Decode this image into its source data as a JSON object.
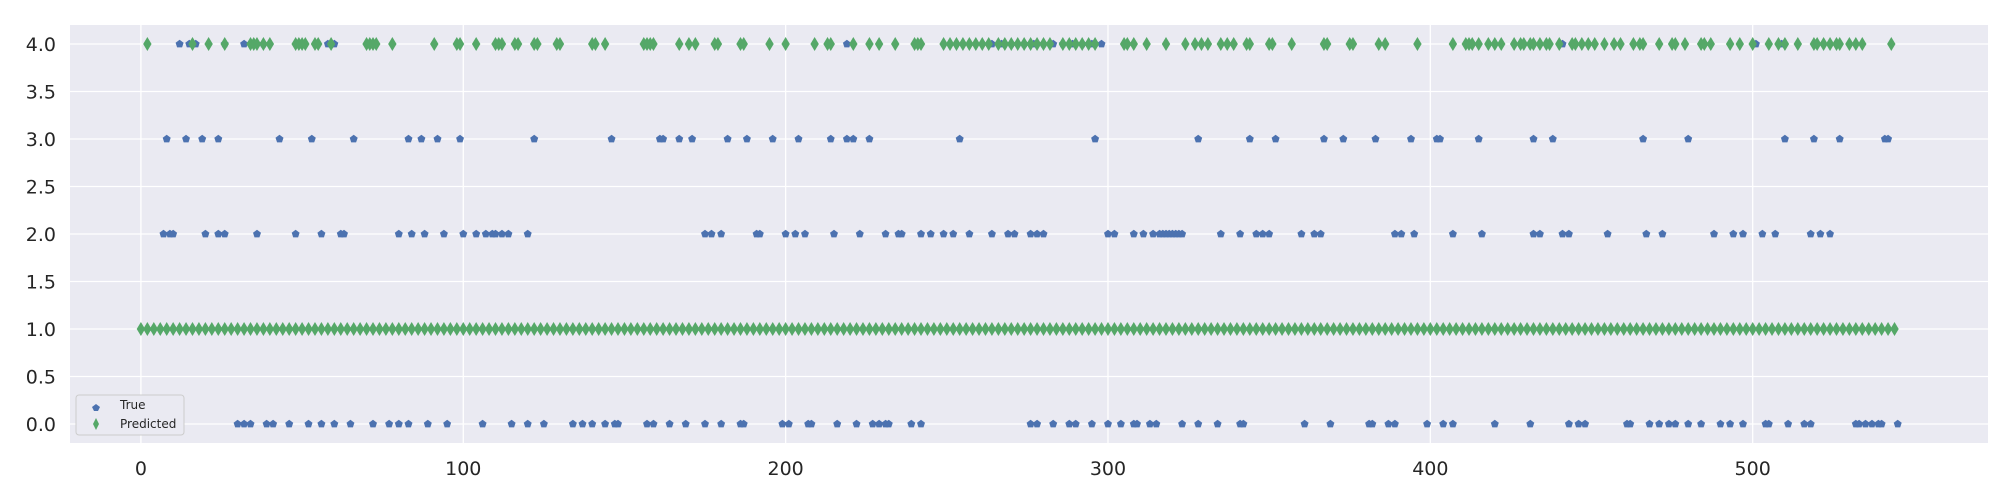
{
  "chart_data": {
    "type": "scatter",
    "title": "",
    "xlabel": "",
    "ylabel": "",
    "xlim": [
      -22,
      573
    ],
    "ylim": [
      -0.2,
      4.2
    ],
    "x_ticks": [
      0,
      100,
      200,
      300,
      400,
      500
    ],
    "x_tick_labels": [
      "0",
      "100",
      "200",
      "300",
      "400",
      "500"
    ],
    "y_ticks": [
      0.0,
      0.5,
      1.0,
      1.5,
      2.0,
      2.5,
      3.0,
      3.5,
      4.0
    ],
    "y_tick_labels": [
      "0.0",
      "0.5",
      "1.0",
      "1.5",
      "2.0",
      "2.5",
      "3.0",
      "3.5",
      "4.0"
    ],
    "grid": true,
    "background": "#eaeaf2",
    "legend": {
      "position": "bottom-left",
      "entries": [
        "True",
        "Predicted"
      ]
    },
    "series": [
      {
        "name": "True",
        "marker": "pentagon",
        "color": "#4c72b0",
        "points": [
          {
            "y": 4.0,
            "x": [
              12,
              15,
              17,
              26,
              32,
              35,
              38,
              58,
              59,
              60,
              219,
              264,
              267,
              270,
              274,
              277,
              280,
              283,
              286,
              289,
              292,
              295,
              298,
              441,
              501,
              509
            ]
          },
          {
            "y": 3.0,
            "x": [
              8,
              14,
              19,
              24,
              43,
              53,
              66,
              83,
              87,
              92,
              99,
              122,
              146,
              161,
              162,
              167,
              171,
              182,
              188,
              196,
              204,
              214,
              219,
              221,
              226,
              254,
              296,
              328,
              344,
              352,
              367,
              373,
              383,
              394,
              402,
              403,
              415,
              432,
              438,
              466,
              480,
              510,
              519,
              527,
              541,
              542
            ]
          },
          {
            "y": 2.0,
            "x": [
              7,
              9,
              10,
              20,
              24,
              26,
              36,
              48,
              56,
              62,
              63,
              80,
              84,
              88,
              94,
              100,
              104,
              107,
              109,
              110,
              112,
              114,
              120,
              175,
              177,
              180,
              191,
              192,
              200,
              203,
              206,
              215,
              223,
              231,
              235,
              236,
              242,
              245,
              249,
              252,
              257,
              264,
              269,
              271,
              276,
              278,
              280,
              300,
              302,
              308,
              311,
              314,
              316,
              317,
              318,
              319,
              320,
              321,
              322,
              323,
              335,
              341,
              346,
              348,
              350,
              360,
              364,
              366,
              389,
              391,
              395,
              407,
              416,
              432,
              434,
              441,
              443,
              455,
              467,
              472,
              488,
              494,
              497,
              503,
              507,
              518,
              521,
              524
            ]
          },
          {
            "y": 0.0,
            "x": [
              11,
              30,
              32,
              34,
              39,
              41,
              46,
              52,
              56,
              60,
              65,
              72,
              77,
              80,
              83,
              89,
              95,
              106,
              115,
              120,
              125,
              134,
              137,
              140,
              144,
              147,
              148,
              157,
              159,
              164,
              169,
              175,
              180,
              186,
              187,
              199,
              201,
              207,
              208,
              216,
              222,
              227,
              229,
              231,
              232,
              239,
              242,
              276,
              278,
              283,
              288,
              290,
              295,
              300,
              304,
              308,
              309,
              313,
              315,
              323,
              328,
              334,
              341,
              342,
              361,
              369,
              381,
              382,
              387,
              389,
              399,
              404,
              407,
              420,
              431,
              443,
              446,
              448,
              461,
              462,
              468,
              471,
              474,
              476,
              480,
              484,
              490,
              493,
              497,
              504,
              505,
              511,
              516,
              518,
              532,
              533,
              535,
              537,
              539,
              540,
              545
            ]
          }
        ]
      },
      {
        "name": "Predicted",
        "marker": "thin_diamond",
        "color": "#55a868",
        "points": [
          {
            "y": 4.0,
            "x": [
              2,
              16,
              21,
              26,
              34,
              35,
              36,
              38,
              40,
              48,
              49,
              50,
              51,
              54,
              55,
              59,
              70,
              71,
              72,
              73,
              78,
              91,
              98,
              99,
              104,
              110,
              111,
              112,
              116,
              117,
              122,
              123,
              129,
              130,
              140,
              141,
              144,
              156,
              157,
              158,
              159,
              167,
              170,
              172,
              178,
              179,
              186,
              187,
              195,
              200,
              209,
              213,
              214,
              221,
              226,
              229,
              234,
              240,
              241,
              242,
              249,
              251,
              253,
              255,
              257,
              259,
              261,
              263,
              266,
              268,
              270,
              272,
              274,
              276,
              278,
              280,
              282,
              286,
              288,
              290,
              292,
              294,
              296,
              305,
              306,
              308,
              312,
              318,
              324,
              327,
              329,
              331,
              335,
              337,
              339,
              343,
              344,
              350,
              351,
              357,
              367,
              368,
              375,
              376,
              384,
              386,
              396,
              407,
              411,
              412,
              413,
              415,
              418,
              420,
              422,
              426,
              428,
              429,
              431,
              432,
              434,
              436,
              437,
              440,
              444,
              445,
              447,
              449,
              451,
              454,
              457,
              459,
              463,
              465,
              466,
              471,
              475,
              476,
              479,
              484,
              485,
              487,
              493,
              496,
              500,
              505,
              508,
              510,
              514,
              519,
              520,
              522,
              524,
              526,
              527,
              530,
              532,
              534,
              543
            ]
          },
          {
            "y": 1.0,
            "x": [
              0,
              2,
              4,
              6,
              8,
              10,
              12,
              14,
              16,
              18,
              20,
              22,
              24,
              26,
              28,
              30,
              32,
              34,
              36,
              38,
              40,
              42,
              44,
              46,
              48,
              50,
              52,
              54,
              56,
              58,
              60,
              62,
              64,
              66,
              68,
              70,
              72,
              74,
              76,
              78,
              80,
              82,
              84,
              86,
              88,
              90,
              92,
              94,
              96,
              98,
              100,
              102,
              104,
              106,
              108,
              110,
              112,
              114,
              116,
              118,
              120,
              122,
              124,
              126,
              128,
              130,
              132,
              134,
              136,
              138,
              140,
              142,
              144,
              146,
              148,
              150,
              152,
              154,
              156,
              158,
              160,
              162,
              164,
              166,
              168,
              170,
              172,
              174,
              176,
              178,
              180,
              182,
              184,
              186,
              188,
              190,
              192,
              194,
              196,
              198,
              200,
              202,
              204,
              206,
              208,
              210,
              212,
              214,
              216,
              218,
              220,
              222,
              224,
              226,
              228,
              230,
              232,
              234,
              236,
              238,
              240,
              242,
              244,
              246,
              248,
              250,
              252,
              254,
              256,
              258,
              260,
              262,
              264,
              266,
              268,
              270,
              272,
              274,
              276,
              278,
              280,
              282,
              284,
              286,
              288,
              290,
              292,
              294,
              296,
              298,
              300,
              302,
              304,
              306,
              308,
              310,
              312,
              314,
              316,
              318,
              320,
              322,
              324,
              326,
              328,
              330,
              332,
              334,
              336,
              338,
              340,
              342,
              344,
              346,
              348,
              350,
              352,
              354,
              356,
              358,
              360,
              362,
              364,
              366,
              368,
              370,
              372,
              374,
              376,
              378,
              380,
              382,
              384,
              386,
              388,
              390,
              392,
              394,
              396,
              398,
              400,
              402,
              404,
              406,
              408,
              410,
              412,
              414,
              416,
              418,
              420,
              422,
              424,
              426,
              428,
              430,
              432,
              434,
              436,
              438,
              440,
              442,
              444,
              446,
              448,
              450,
              452,
              454,
              456,
              458,
              460,
              462,
              464,
              466,
              468,
              470,
              472,
              474,
              476,
              478,
              480,
              482,
              484,
              486,
              488,
              490,
              492,
              494,
              496,
              498,
              500,
              502,
              504,
              506,
              508,
              510,
              512,
              514,
              516,
              518,
              520,
              522,
              524,
              526,
              528,
              530,
              532,
              534,
              536,
              538,
              540,
              542,
              544
            ]
          }
        ]
      }
    ]
  }
}
